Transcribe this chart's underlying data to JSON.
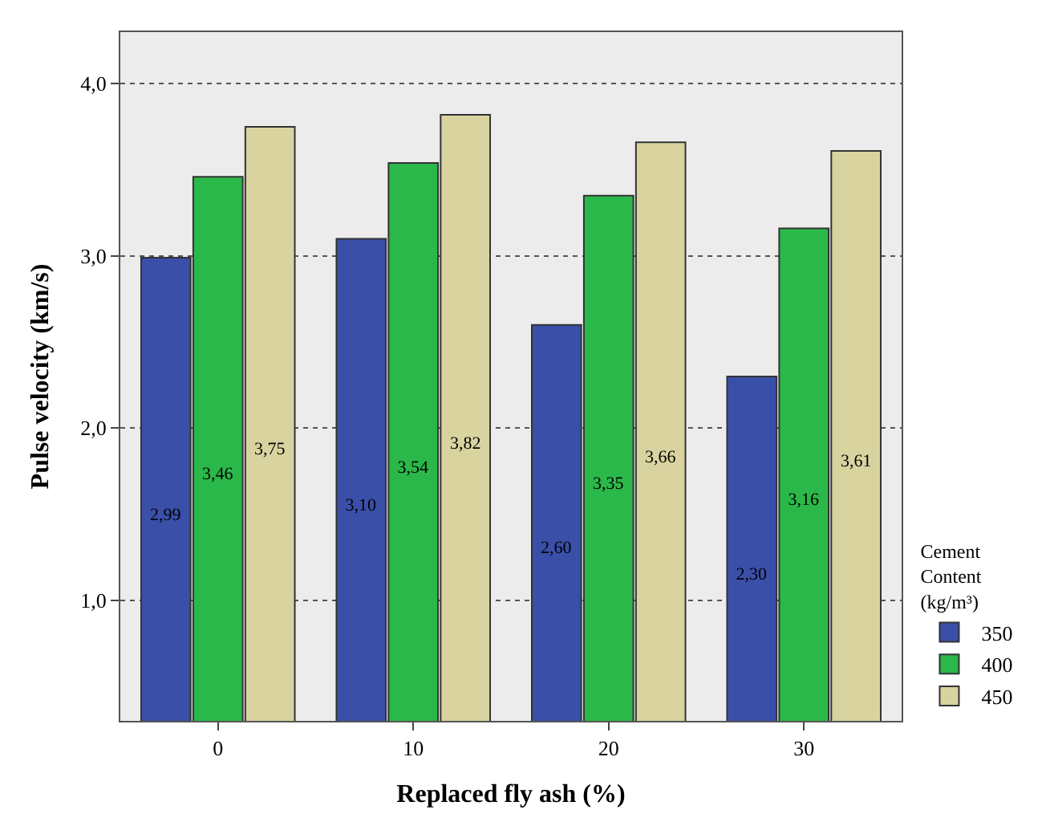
{
  "chart_data": {
    "type": "bar",
    "xlabel": "Replaced fly ash (%)",
    "ylabel": "Pulse velocity (km/s)",
    "legend_title": "Cement Content (kg/m³)",
    "categories": [
      "0",
      "10",
      "20",
      "30"
    ],
    "series": [
      {
        "name": "350",
        "color": "#3a4fa8",
        "values": [
          2.99,
          3.1,
          2.6,
          2.3
        ],
        "value_labels": [
          "2,99",
          "3,10",
          "2,60",
          "2,30"
        ]
      },
      {
        "name": "400",
        "color": "#2bb84a",
        "values": [
          3.46,
          3.54,
          3.35,
          3.16
        ],
        "value_labels": [
          "3,46",
          "3,54",
          "3,35",
          "3,16"
        ]
      },
      {
        "name": "450",
        "color": "#d9d3a0",
        "values": [
          3.75,
          3.82,
          3.66,
          3.61
        ],
        "value_labels": [
          "3,75",
          "3,82",
          "3,66",
          "3,61"
        ]
      }
    ],
    "ylim": [
      0.3,
      4.3
    ],
    "yticks": [
      {
        "value": 1,
        "label": "1,0"
      },
      {
        "value": 2,
        "label": "2,0"
      },
      {
        "value": 3,
        "label": "3,0"
      },
      {
        "value": 4,
        "label": "4,0"
      }
    ],
    "grid": "y",
    "legend": "right"
  }
}
